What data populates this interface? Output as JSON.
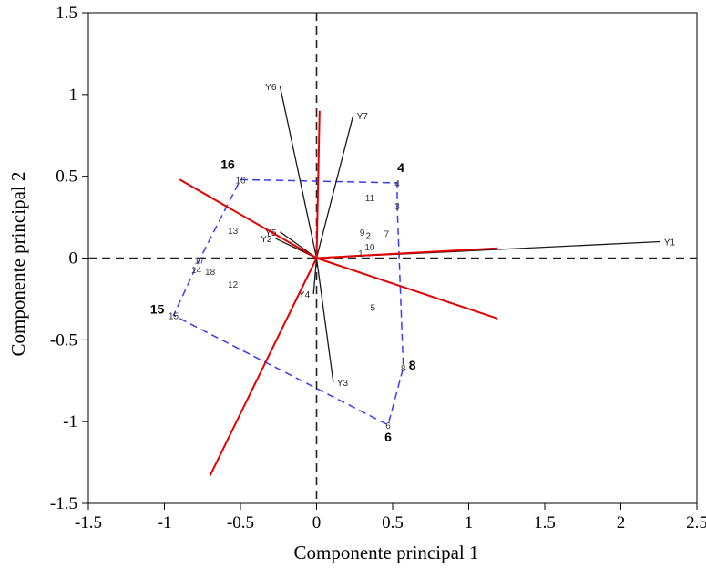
{
  "chart_data": {
    "type": "scatter",
    "subtype": "biplot",
    "xlabel": "Componente principal 1",
    "ylabel": "Componente principal 2",
    "xlim": [
      -1.5,
      2.5
    ],
    "ylim": [
      -1.5,
      1.5
    ],
    "x_ticks": [
      -1.5,
      -1,
      -0.5,
      0,
      0.5,
      1,
      1.5,
      2,
      2.5
    ],
    "x_tick_labels": [
      "-1.5",
      "-1",
      "-0.5",
      "0",
      "0.5",
      "1",
      "1.5",
      "2",
      "2.5"
    ],
    "y_ticks": [
      -1.5,
      -1,
      -0.5,
      0,
      0.5,
      1,
      1.5
    ],
    "y_tick_labels": [
      "-1.5",
      "-1",
      "-0.5",
      "0",
      "0.5",
      "1",
      "1.5"
    ],
    "zero_lines": true,
    "points": [
      {
        "label": "1",
        "x": 0.29,
        "y": 0.03
      },
      {
        "label": "2",
        "x": 0.34,
        "y": 0.14
      },
      {
        "label": "3",
        "x": 0.53,
        "y": 0.32
      },
      {
        "label": "4",
        "x": 0.53,
        "y": 0.46
      },
      {
        "label": "5",
        "x": 0.37,
        "y": -0.3
      },
      {
        "label": "6",
        "x": 0.47,
        "y": -1.02
      },
      {
        "label": "7",
        "x": 0.46,
        "y": 0.15
      },
      {
        "label": "8",
        "x": 0.57,
        "y": -0.67
      },
      {
        "label": "9",
        "x": 0.3,
        "y": 0.16
      },
      {
        "label": "10",
        "x": 0.35,
        "y": 0.07
      },
      {
        "label": "11",
        "x": 0.35,
        "y": 0.37
      },
      {
        "label": "12",
        "x": -0.55,
        "y": -0.16
      },
      {
        "label": "13",
        "x": -0.55,
        "y": 0.17
      },
      {
        "label": "14",
        "x": -0.79,
        "y": -0.07
      },
      {
        "label": "15",
        "x": -0.94,
        "y": -0.35
      },
      {
        "label": "16",
        "x": -0.5,
        "y": 0.48
      },
      {
        "label": "17",
        "x": -0.77,
        "y": -0.01
      },
      {
        "label": "18",
        "x": -0.7,
        "y": -0.08
      }
    ],
    "hull_labels_bold": [
      {
        "label": "16",
        "x": -0.5,
        "y": 0.48
      },
      {
        "label": "4",
        "x": 0.53,
        "y": 0.46
      },
      {
        "label": "15",
        "x": -0.94,
        "y": -0.35
      },
      {
        "label": "8",
        "x": 0.57,
        "y": -0.67
      },
      {
        "label": "6",
        "x": 0.47,
        "y": -1.02
      }
    ],
    "hull_order": [
      "16",
      "4",
      "3",
      "8",
      "6",
      "15",
      "17"
    ],
    "variables": [
      {
        "label": "Y1",
        "x": 2.26,
        "y": 0.1
      },
      {
        "label": "Y2",
        "x": -0.27,
        "y": 0.12
      },
      {
        "label": "Y3",
        "x": 0.11,
        "y": -0.76
      },
      {
        "label": "Y4",
        "x": -0.02,
        "y": -0.22
      },
      {
        "label": "Y5",
        "x": -0.24,
        "y": 0.16
      },
      {
        "label": "Y6",
        "x": -0.24,
        "y": 1.05
      },
      {
        "label": "Y7",
        "x": 0.24,
        "y": 0.87
      }
    ],
    "red_rays": [
      {
        "x": 1.19,
        "y": 0.06
      },
      {
        "x": 0.02,
        "y": 0.9
      },
      {
        "x": -0.9,
        "y": 0.48
      },
      {
        "x": -0.7,
        "y": -1.33
      },
      {
        "x": 1.19,
        "y": -0.37
      }
    ],
    "colors": {
      "hull": "#3a3aff",
      "red_rays": "#e30000",
      "variable_vectors": "#1a1a1a",
      "axes": "#000000"
    }
  }
}
